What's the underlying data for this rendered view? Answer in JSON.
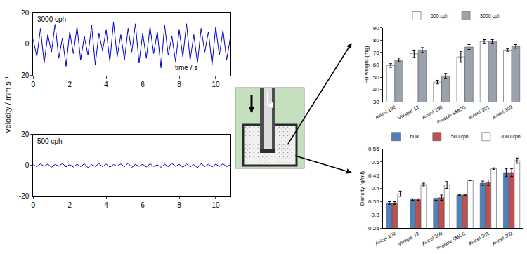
{
  "chart_data": [
    {
      "type": "line",
      "label": "3000 cph",
      "x_label": "time / s",
      "y_label": "velocity / mm s⁻¹",
      "x": [
        0,
        0.2,
        0.4,
        0.6,
        0.8,
        1,
        1.2,
        1.4,
        1.6,
        1.8,
        2,
        2.2,
        2.4,
        2.6,
        2.8,
        3,
        3.2,
        3.4,
        3.6,
        3.8,
        4,
        4.2,
        4.4,
        4.6,
        4.8,
        5,
        5.2,
        5.4,
        5.6,
        5.8,
        6,
        6.2,
        6.4,
        6.6,
        6.8,
        7,
        7.2,
        7.4,
        7.6,
        7.8,
        8,
        8.2,
        8.4,
        8.6,
        8.8,
        9,
        9.2,
        9.4,
        9.6,
        9.8,
        10,
        10.2,
        10.4,
        10.6,
        10.8
      ],
      "values": [
        3,
        -8,
        10,
        -12,
        6,
        -5,
        13,
        -9,
        4,
        -14,
        8,
        -6,
        11,
        -10,
        5,
        -7,
        12,
        -13,
        7,
        -4,
        9,
        -11,
        14,
        -8,
        6,
        -10,
        10,
        -5,
        13,
        -12,
        7,
        -9,
        11,
        -6,
        8,
        -15,
        12,
        -7,
        5,
        -11,
        9,
        -8,
        13,
        -10,
        6,
        -12,
        10,
        -5,
        8,
        -13,
        11,
        -7,
        9,
        -10,
        4
      ],
      "color": "#0000cc",
      "xlim": [
        0,
        10.8
      ],
      "xticks": [
        0,
        2,
        4,
        6,
        8,
        10
      ],
      "ylim": [
        -20,
        20
      ],
      "yticks": [
        -20,
        0,
        20
      ],
      "grid": false
    },
    {
      "type": "line",
      "label": "500 cph",
      "x": [
        0,
        0.2,
        0.4,
        0.6,
        0.8,
        1,
        1.2,
        1.4,
        1.6,
        1.8,
        2,
        2.2,
        2.4,
        2.6,
        2.8,
        3,
        3.2,
        3.4,
        3.6,
        3.8,
        4,
        4.2,
        4.4,
        4.6,
        4.8,
        5,
        5.2,
        5.4,
        5.6,
        5.8,
        6,
        6.2,
        6.4,
        6.6,
        6.8,
        7,
        7.2,
        7.4,
        7.6,
        7.8,
        8,
        8.2,
        8.4,
        8.6,
        8.8,
        9,
        9.2,
        9.4,
        9.6,
        9.8,
        10,
        10.2,
        10.4,
        10.6,
        10.8
      ],
      "values": [
        0.5,
        -0.8,
        1,
        -0.6,
        0.9,
        -1.2,
        0.7,
        -0.5,
        1.3,
        -0.9,
        0.6,
        -1,
        0.8,
        -0.7,
        1.1,
        -1.4,
        0.5,
        -0.6,
        1.2,
        -0.8,
        0.9,
        -1.1,
        0.6,
        -0.5,
        1,
        -0.9,
        1.5,
        -1.3,
        0.7,
        -0.6,
        0.8,
        -1,
        1.1,
        -0.7,
        0.5,
        -1.2,
        0.9,
        -0.8,
        1.3,
        -0.6,
        0.7,
        -1.1,
        1,
        -0.9,
        0.6,
        -1.5,
        1.2,
        -0.7,
        0.8,
        -1,
        0.9,
        -0.6,
        1.1,
        -0.8,
        0.5
      ],
      "color": "#0000cc",
      "xlim": [
        0,
        10.8
      ],
      "xticks": [
        0,
        2,
        4,
        6,
        8,
        10
      ],
      "ylim": [
        -20,
        20
      ],
      "yticks": [
        -20,
        0,
        20
      ],
      "grid": false
    },
    {
      "type": "bar",
      "y_label": "Fill weight (mg)",
      "categories": [
        "Avicel 102",
        "Vivapur 12",
        "Avicel 200",
        "Prosolv SMCC",
        "Avicel 301",
        "Avicel 302"
      ],
      "series": [
        {
          "name": "500 cph",
          "color": "#ffffff",
          "values": [
            59.5,
            69,
            46,
            66.5,
            79,
            72
          ],
          "error": [
            1.5,
            3,
            1.5,
            4.5,
            1.5,
            1
          ]
        },
        {
          "name": "3000 cph",
          "color": "#9aa3ad",
          "values": [
            64,
            72,
            51,
            74.5,
            79,
            75
          ],
          "error": [
            1.5,
            2,
            2,
            2,
            1.5,
            1.5
          ]
        }
      ],
      "ylim": [
        30,
        90
      ],
      "yticks": [
        30,
        40,
        50,
        60,
        70,
        80,
        90
      ],
      "legend": "top",
      "grid": false
    },
    {
      "type": "bar",
      "y_label": "Density (g/ml)",
      "categories": [
        "Avicel 102",
        "Vivapur 12",
        "Avicel 200",
        "Prosolv SMCC",
        "Avicel 301",
        "Avicel 302"
      ],
      "series": [
        {
          "name": "bulk",
          "color": "#4f81bd",
          "values": [
            0.345,
            0.358,
            0.363,
            0.375,
            0.42,
            0.46
          ],
          "error": [
            0.005,
            0.003,
            0.008,
            0,
            0.008,
            0.015
          ]
        },
        {
          "name": "500 cph",
          "color": "#c0504d",
          "values": [
            0.345,
            0.358,
            0.365,
            0.375,
            0.422,
            0.46
          ],
          "error": [
            0.005,
            0.003,
            0.01,
            0,
            0.01,
            0.015
          ]
        },
        {
          "name": "3000 cph",
          "color": "#ffffff",
          "values": [
            0.38,
            0.415,
            0.413,
            0.43,
            0.475,
            0.505
          ],
          "error": [
            0.01,
            0.005,
            0.013,
            0,
            0.003,
            0.01
          ]
        }
      ],
      "ylim": [
        0.25,
        0.55
      ],
      "yticks": [
        0.25,
        0.3,
        0.35,
        0.4,
        0.45,
        0.5,
        0.55
      ],
      "legend": "top",
      "grid": false
    }
  ]
}
